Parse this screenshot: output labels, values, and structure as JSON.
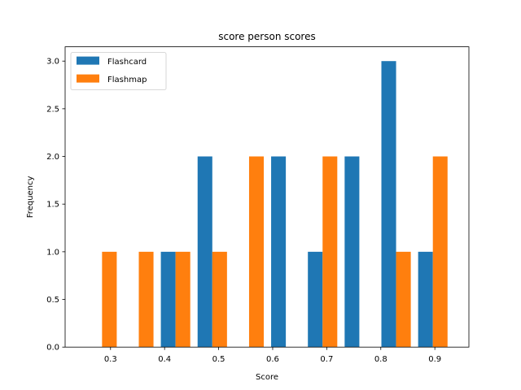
{
  "chart_data": {
    "type": "bar",
    "title": "score person scores",
    "xlabel": "Score",
    "ylabel": "Frequency",
    "xlim": [
      0.216,
      0.963
    ],
    "ylim": [
      0,
      3.15
    ],
    "xticks": [
      0.3,
      0.4,
      0.5,
      0.6,
      0.7,
      0.8,
      0.9
    ],
    "xtick_labels": [
      "0.3",
      "0.4",
      "0.5",
      "0.6",
      "0.7",
      "0.8",
      "0.9"
    ],
    "yticks": [
      0,
      0.5,
      1.0,
      1.5,
      2.0,
      2.5,
      3.0
    ],
    "ytick_labels": [
      "0.0",
      "0.5",
      "1.0",
      "1.5",
      "2.0",
      "2.5",
      "3.0"
    ],
    "bar_width": 0.0272,
    "bin_centers": [
      0.2843,
      0.3523,
      0.4203,
      0.4883,
      0.5563,
      0.6243,
      0.6923,
      0.7603,
      0.8283,
      0.8963
    ],
    "grid": false,
    "legend_position": "upper left",
    "series": [
      {
        "name": "Flashcard",
        "color": "#1f77b4",
        "values": [
          0,
          0,
          1,
          2,
          0,
          2,
          1,
          2,
          3,
          1
        ]
      },
      {
        "name": "Flashmap",
        "color": "#ff7f0e",
        "values": [
          1,
          1,
          1,
          1,
          2,
          0,
          2,
          0,
          1,
          2
        ]
      }
    ]
  }
}
